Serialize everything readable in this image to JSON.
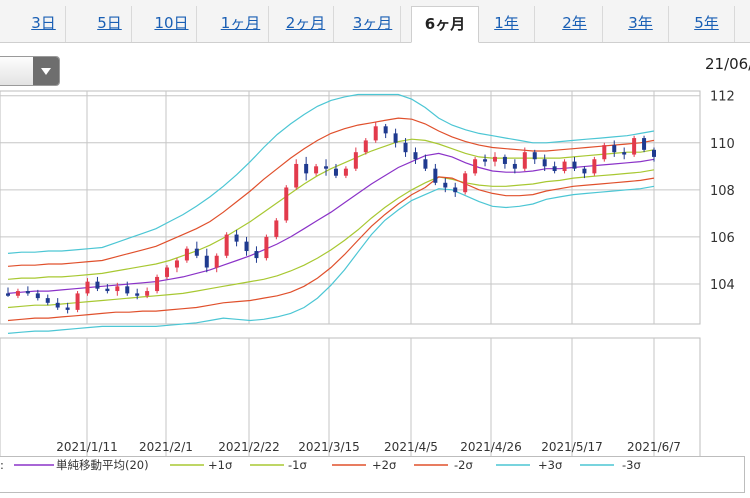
{
  "period_tabs": [
    {
      "label": "3日"
    },
    {
      "label": "5日"
    },
    {
      "label": "10日"
    },
    {
      "label": "1ヶ月"
    },
    {
      "label": "2ヶ月"
    },
    {
      "label": "3ヶ月"
    },
    {
      "label": "6ヶ月",
      "active": true
    },
    {
      "label": "1年"
    },
    {
      "label": "2年"
    },
    {
      "label": "3年"
    },
    {
      "label": "5年"
    }
  ],
  "date_display": "21/06/",
  "legend": {
    "lead": ":",
    "items": [
      {
        "label": "単純移動平均(20)",
        "color": "#8b33c8"
      },
      {
        "label": "+1σ",
        "color": "#a8c832"
      },
      {
        "label": "-1σ",
        "color": "#a8c832"
      },
      {
        "label": "+2σ",
        "color": "#e0502c"
      },
      {
        "label": "-2σ",
        "color": "#e0502c"
      },
      {
        "label": "+3σ",
        "color": "#4cc6d4"
      },
      {
        "label": "-3σ",
        "color": "#4cc6d4"
      }
    ]
  },
  "chart_data": {
    "type": "candlestick",
    "y_ticks": [
      "112",
      "110",
      "108",
      "106",
      "104"
    ],
    "ylim": [
      102.3,
      112.2
    ],
    "x_tick_labels": [
      "2021/1/11",
      "2021/2/1",
      "2021/2/22",
      "2021/3/15",
      "2021/4/5",
      "2021/4/26",
      "2021/5/17",
      "2021/6/7"
    ],
    "grid": true,
    "colors": {
      "up": "#e23a4c",
      "down": "#1f3a8f"
    },
    "series": [
      {
        "name": "単純移動平均(20)",
        "color": "#8b33c8",
        "values": [
          103.6,
          103.65,
          103.7,
          103.7,
          103.75,
          103.8,
          103.85,
          103.9,
          103.95,
          104.0,
          104.05,
          104.1,
          104.2,
          104.3,
          104.45,
          104.6,
          104.8,
          105.0,
          105.2,
          105.45,
          105.7,
          106.0,
          106.35,
          106.7,
          107.05,
          107.45,
          107.85,
          108.25,
          108.6,
          108.95,
          109.2,
          109.45,
          109.55,
          109.4,
          109.15,
          108.95,
          108.8,
          108.75,
          108.75,
          108.8,
          108.9,
          108.9,
          108.95,
          109.0,
          109.05,
          109.1,
          109.15,
          109.2,
          109.3
        ]
      },
      {
        "name": "+1σ",
        "color": "#a8c832",
        "values": [
          104.2,
          104.25,
          104.25,
          104.3,
          104.3,
          104.35,
          104.4,
          104.45,
          104.55,
          104.65,
          104.75,
          104.85,
          105.0,
          105.2,
          105.4,
          105.65,
          105.95,
          106.3,
          106.65,
          107.05,
          107.45,
          107.85,
          108.25,
          108.6,
          108.9,
          109.15,
          109.4,
          109.65,
          109.85,
          110.05,
          110.15,
          110.1,
          109.95,
          109.75,
          109.55,
          109.4,
          109.35,
          109.35,
          109.35,
          109.35,
          109.35,
          109.35,
          109.4,
          109.45,
          109.5,
          109.55,
          109.6,
          109.6,
          109.7
        ]
      },
      {
        "name": "-1σ",
        "color": "#a8c832",
        "values": [
          103.0,
          103.05,
          103.1,
          103.1,
          103.15,
          103.2,
          103.25,
          103.3,
          103.35,
          103.4,
          103.45,
          103.5,
          103.55,
          103.6,
          103.7,
          103.8,
          103.9,
          104.0,
          104.1,
          104.2,
          104.35,
          104.55,
          104.8,
          105.1,
          105.45,
          105.85,
          106.3,
          106.8,
          107.25,
          107.65,
          108.0,
          108.3,
          108.55,
          108.45,
          108.3,
          108.2,
          108.15,
          108.15,
          108.2,
          108.25,
          108.35,
          108.4,
          108.5,
          108.55,
          108.6,
          108.65,
          108.7,
          108.75,
          108.85
        ]
      },
      {
        "name": "+2σ",
        "color": "#e0502c",
        "values": [
          104.75,
          104.8,
          104.8,
          104.85,
          104.85,
          104.9,
          104.95,
          105.0,
          105.15,
          105.3,
          105.45,
          105.6,
          105.85,
          106.1,
          106.35,
          106.65,
          107.05,
          107.5,
          107.95,
          108.45,
          108.9,
          109.35,
          109.75,
          110.1,
          110.4,
          110.6,
          110.75,
          110.85,
          110.95,
          111.05,
          111.0,
          110.8,
          110.5,
          110.25,
          110.05,
          109.9,
          109.8,
          109.75,
          109.7,
          109.65,
          109.65,
          109.7,
          109.75,
          109.8,
          109.85,
          109.9,
          109.95,
          110.0,
          110.1
        ]
      },
      {
        "name": "-2σ",
        "color": "#e0502c",
        "values": [
          102.45,
          102.5,
          102.55,
          102.55,
          102.6,
          102.65,
          102.7,
          102.75,
          102.8,
          102.8,
          102.85,
          102.85,
          102.9,
          102.95,
          103.0,
          103.1,
          103.2,
          103.25,
          103.3,
          103.4,
          103.5,
          103.65,
          103.9,
          104.25,
          104.7,
          105.25,
          105.85,
          106.45,
          106.95,
          107.4,
          107.8,
          108.1,
          108.55,
          108.5,
          108.25,
          108.0,
          107.85,
          107.75,
          107.75,
          107.8,
          107.95,
          108.05,
          108.15,
          108.2,
          108.25,
          108.3,
          108.35,
          108.4,
          108.5
        ]
      },
      {
        "name": "+3σ",
        "color": "#4cc6d4",
        "values": [
          105.3,
          105.35,
          105.35,
          105.4,
          105.4,
          105.45,
          105.5,
          105.55,
          105.75,
          105.95,
          106.15,
          106.35,
          106.65,
          106.95,
          107.3,
          107.7,
          108.15,
          108.65,
          109.2,
          109.8,
          110.35,
          110.8,
          111.2,
          111.55,
          111.8,
          111.95,
          112.05,
          112.05,
          112.05,
          112.05,
          111.85,
          111.5,
          111.05,
          110.75,
          110.55,
          110.4,
          110.3,
          110.2,
          110.1,
          110.0,
          110.0,
          110.05,
          110.1,
          110.15,
          110.2,
          110.25,
          110.3,
          110.4,
          110.5
        ]
      },
      {
        "name": "-3σ",
        "color": "#4cc6d4",
        "values": [
          101.9,
          101.95,
          102.0,
          102.0,
          102.05,
          102.1,
          102.15,
          102.2,
          102.2,
          102.2,
          102.2,
          102.2,
          102.25,
          102.3,
          102.35,
          102.45,
          102.55,
          102.5,
          102.45,
          102.5,
          102.6,
          102.75,
          103.0,
          103.4,
          103.95,
          104.6,
          105.35,
          106.1,
          106.7,
          107.15,
          107.55,
          107.8,
          108.05,
          108.0,
          107.75,
          107.5,
          107.3,
          107.25,
          107.3,
          107.4,
          107.6,
          107.7,
          107.8,
          107.85,
          107.9,
          107.95,
          108.0,
          108.05,
          108.15
        ]
      }
    ],
    "candles": [
      {
        "o": 103.6,
        "h": 103.85,
        "l": 103.45,
        "c": 103.5
      },
      {
        "o": 103.5,
        "h": 103.8,
        "l": 103.4,
        "c": 103.7
      },
      {
        "o": 103.7,
        "h": 103.9,
        "l": 103.5,
        "c": 103.6
      },
      {
        "o": 103.6,
        "h": 103.75,
        "l": 103.3,
        "c": 103.4
      },
      {
        "o": 103.4,
        "h": 103.55,
        "l": 103.1,
        "c": 103.2
      },
      {
        "o": 103.2,
        "h": 103.4,
        "l": 102.9,
        "c": 103.0
      },
      {
        "o": 103.0,
        "h": 103.2,
        "l": 102.75,
        "c": 102.9
      },
      {
        "o": 102.9,
        "h": 103.7,
        "l": 102.8,
        "c": 103.6
      },
      {
        "o": 103.6,
        "h": 104.25,
        "l": 103.5,
        "c": 104.1
      },
      {
        "o": 104.1,
        "h": 104.3,
        "l": 103.7,
        "c": 103.8
      },
      {
        "o": 103.8,
        "h": 104.0,
        "l": 103.6,
        "c": 103.7
      },
      {
        "o": 103.7,
        "h": 104.05,
        "l": 103.5,
        "c": 103.9
      },
      {
        "o": 103.9,
        "h": 104.1,
        "l": 103.5,
        "c": 103.6
      },
      {
        "o": 103.6,
        "h": 103.8,
        "l": 103.35,
        "c": 103.5
      },
      {
        "o": 103.5,
        "h": 103.85,
        "l": 103.4,
        "c": 103.7
      },
      {
        "o": 103.7,
        "h": 104.4,
        "l": 103.6,
        "c": 104.3
      },
      {
        "o": 104.3,
        "h": 104.8,
        "l": 104.2,
        "c": 104.7
      },
      {
        "o": 104.7,
        "h": 105.1,
        "l": 104.5,
        "c": 105.0
      },
      {
        "o": 105.0,
        "h": 105.6,
        "l": 104.9,
        "c": 105.5
      },
      {
        "o": 105.5,
        "h": 105.8,
        "l": 105.1,
        "c": 105.2
      },
      {
        "o": 105.2,
        "h": 105.5,
        "l": 104.5,
        "c": 104.7
      },
      {
        "o": 104.7,
        "h": 105.3,
        "l": 104.5,
        "c": 105.2
      },
      {
        "o": 105.2,
        "h": 106.2,
        "l": 105.1,
        "c": 106.1
      },
      {
        "o": 106.1,
        "h": 106.3,
        "l": 105.6,
        "c": 105.8
      },
      {
        "o": 105.8,
        "h": 106.0,
        "l": 105.2,
        "c": 105.4
      },
      {
        "o": 105.4,
        "h": 105.6,
        "l": 104.9,
        "c": 105.1
      },
      {
        "o": 105.1,
        "h": 106.1,
        "l": 105.0,
        "c": 106.0
      },
      {
        "o": 106.0,
        "h": 106.8,
        "l": 105.9,
        "c": 106.7
      },
      {
        "o": 106.7,
        "h": 108.2,
        "l": 106.6,
        "c": 108.1
      },
      {
        "o": 108.1,
        "h": 109.3,
        "l": 108.0,
        "c": 109.1
      },
      {
        "o": 109.1,
        "h": 109.4,
        "l": 108.4,
        "c": 108.7
      },
      {
        "o": 108.7,
        "h": 109.1,
        "l": 108.6,
        "c": 109.0
      },
      {
        "o": 109.0,
        "h": 109.3,
        "l": 108.6,
        "c": 108.9
      },
      {
        "o": 108.9,
        "h": 109.1,
        "l": 108.5,
        "c": 108.6
      },
      {
        "o": 108.6,
        "h": 109.0,
        "l": 108.5,
        "c": 108.9
      },
      {
        "o": 108.9,
        "h": 109.8,
        "l": 108.8,
        "c": 109.6
      },
      {
        "o": 109.6,
        "h": 110.2,
        "l": 109.5,
        "c": 110.1
      },
      {
        "o": 110.1,
        "h": 110.9,
        "l": 110.0,
        "c": 110.7
      },
      {
        "o": 110.7,
        "h": 110.8,
        "l": 110.2,
        "c": 110.4
      },
      {
        "o": 110.4,
        "h": 110.6,
        "l": 109.8,
        "c": 110.0
      },
      {
        "o": 110.0,
        "h": 110.2,
        "l": 109.4,
        "c": 109.6
      },
      {
        "o": 109.6,
        "h": 109.8,
        "l": 109.1,
        "c": 109.3
      },
      {
        "o": 109.3,
        "h": 109.5,
        "l": 108.8,
        "c": 108.9
      },
      {
        "o": 108.9,
        "h": 109.1,
        "l": 108.2,
        "c": 108.3
      },
      {
        "o": 108.3,
        "h": 108.5,
        "l": 107.9,
        "c": 108.1
      },
      {
        "o": 108.1,
        "h": 108.3,
        "l": 107.7,
        "c": 107.9
      },
      {
        "o": 107.9,
        "h": 108.8,
        "l": 107.8,
        "c": 108.7
      },
      {
        "o": 108.7,
        "h": 109.4,
        "l": 108.6,
        "c": 109.3
      },
      {
        "o": 109.3,
        "h": 109.5,
        "l": 109.0,
        "c": 109.2
      },
      {
        "o": 109.2,
        "h": 109.6,
        "l": 109.0,
        "c": 109.4
      },
      {
        "o": 109.4,
        "h": 109.5,
        "l": 108.9,
        "c": 109.1
      },
      {
        "o": 109.1,
        "h": 109.3,
        "l": 108.7,
        "c": 108.9
      },
      {
        "o": 108.9,
        "h": 109.8,
        "l": 108.8,
        "c": 109.6
      },
      {
        "o": 109.6,
        "h": 109.7,
        "l": 109.1,
        "c": 109.3
      },
      {
        "o": 109.3,
        "h": 109.5,
        "l": 108.8,
        "c": 109.0
      },
      {
        "o": 109.0,
        "h": 109.2,
        "l": 108.7,
        "c": 108.8
      },
      {
        "o": 108.8,
        "h": 109.3,
        "l": 108.7,
        "c": 109.2
      },
      {
        "o": 109.2,
        "h": 109.4,
        "l": 108.8,
        "c": 108.9
      },
      {
        "o": 108.9,
        "h": 109.0,
        "l": 108.5,
        "c": 108.7
      },
      {
        "o": 108.7,
        "h": 109.4,
        "l": 108.6,
        "c": 109.3
      },
      {
        "o": 109.3,
        "h": 110.0,
        "l": 109.2,
        "c": 109.9
      },
      {
        "o": 109.9,
        "h": 110.1,
        "l": 109.4,
        "c": 109.6
      },
      {
        "o": 109.6,
        "h": 109.8,
        "l": 109.3,
        "c": 109.5
      },
      {
        "o": 109.5,
        "h": 110.3,
        "l": 109.4,
        "c": 110.2
      },
      {
        "o": 110.2,
        "h": 110.3,
        "l": 109.6,
        "c": 109.7
      },
      {
        "o": 109.7,
        "h": 109.8,
        "l": 109.2,
        "c": 109.4
      }
    ]
  }
}
